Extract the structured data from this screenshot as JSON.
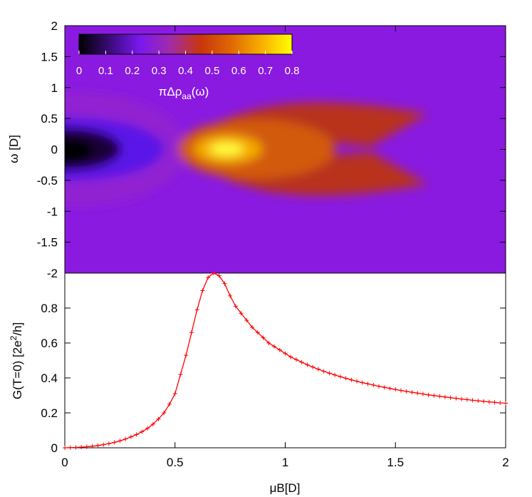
{
  "chart_data": [
    {
      "type": "heatmap",
      "xlabel": "",
      "ylabel": "ω [D]",
      "xlim": [
        0,
        2
      ],
      "ylim": [
        -2,
        2
      ],
      "yticks": [
        "2",
        "1.5",
        "1",
        "0.5",
        "0",
        "-0.5",
        "-1",
        "-1.5",
        "-2"
      ],
      "colorbar": {
        "label_main": "πΔρ",
        "label_sub": "aa",
        "label_tail": "(ω)",
        "range": [
          0,
          0.8
        ],
        "ticks": [
          "0",
          "0.1",
          "0.2",
          "0.3",
          "0.4",
          "0.5",
          "0.6",
          "0.7",
          "0.8"
        ],
        "palette": [
          "#000000",
          "#3a0a78",
          "#7a18f0",
          "#a02ca8",
          "#c8360c",
          "#e06804",
          "#f8b000",
          "#ffff00"
        ]
      }
    },
    {
      "type": "line",
      "xlabel": "μB[D]",
      "ylabel_main": "G(T=0) [2e",
      "ylabel_sup": "2",
      "ylabel_tail": "/h]",
      "xlim": [
        0,
        2
      ],
      "ylim": [
        0,
        1
      ],
      "xticks": [
        "0",
        "0.5",
        "1",
        "1.5",
        "2"
      ],
      "yticks": [
        "0",
        "0.2",
        "0.4",
        "0.6",
        "0.8"
      ],
      "color": "#ff0000",
      "x": [
        0.0,
        0.025,
        0.05,
        0.075,
        0.1,
        0.125,
        0.15,
        0.175,
        0.2,
        0.225,
        0.25,
        0.275,
        0.3,
        0.325,
        0.35,
        0.375,
        0.4,
        0.425,
        0.45,
        0.475,
        0.5,
        0.525,
        0.55,
        0.575,
        0.6,
        0.625,
        0.65,
        0.675,
        0.7,
        0.725,
        0.75,
        0.775,
        0.8,
        0.825,
        0.85,
        0.875,
        0.9,
        0.925,
        0.95,
        0.975,
        1.0,
        1.025,
        1.05,
        1.075,
        1.1,
        1.125,
        1.15,
        1.175,
        1.2,
        1.225,
        1.25,
        1.275,
        1.3,
        1.325,
        1.35,
        1.375,
        1.4,
        1.425,
        1.45,
        1.475,
        1.5,
        1.525,
        1.55,
        1.575,
        1.6,
        1.625,
        1.65,
        1.675,
        1.7,
        1.725,
        1.75,
        1.775,
        1.8,
        1.825,
        1.85,
        1.875,
        1.9,
        1.925,
        1.95,
        1.975,
        2.0
      ],
      "y": [
        0.0,
        0.001,
        0.002,
        0.004,
        0.006,
        0.009,
        0.013,
        0.018,
        0.024,
        0.031,
        0.04,
        0.05,
        0.062,
        0.076,
        0.092,
        0.111,
        0.135,
        0.165,
        0.2,
        0.25,
        0.31,
        0.42,
        0.53,
        0.66,
        0.79,
        0.9,
        0.975,
        1.0,
        0.985,
        0.94,
        0.87,
        0.81,
        0.77,
        0.73,
        0.69,
        0.66,
        0.63,
        0.6,
        0.58,
        0.56,
        0.54,
        0.52,
        0.505,
        0.49,
        0.475,
        0.462,
        0.45,
        0.438,
        0.427,
        0.417,
        0.407,
        0.398,
        0.389,
        0.381,
        0.373,
        0.366,
        0.359,
        0.352,
        0.346,
        0.34,
        0.334,
        0.328,
        0.323,
        0.318,
        0.313,
        0.308,
        0.303,
        0.299,
        0.295,
        0.291,
        0.287,
        0.283,
        0.279,
        0.276,
        0.272,
        0.269,
        0.266,
        0.263,
        0.26,
        0.257,
        0.255
      ]
    }
  ]
}
